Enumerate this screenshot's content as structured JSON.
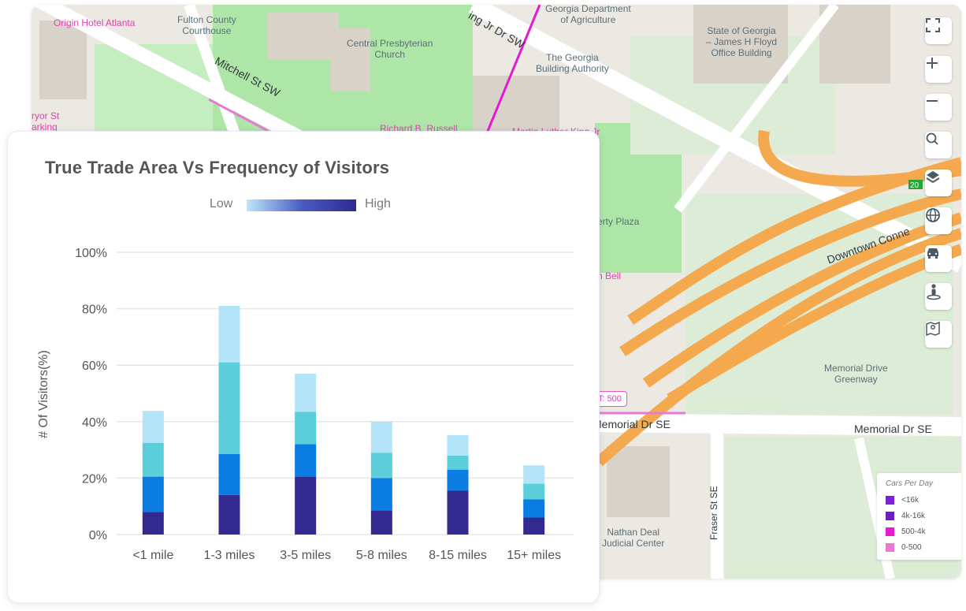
{
  "map": {
    "places": [
      {
        "name": "Origin Hotel Atlanta",
        "pink": true
      },
      {
        "name": "Fulton County\nCourthouse",
        "pink": false
      },
      {
        "name": "Georgia Department\nof Agriculture",
        "pink": false
      },
      {
        "name": "State of Georgia\n– James H Floyd\nOffice Building",
        "pink": false
      },
      {
        "name": "Central Presbyterian\nChurch",
        "pink": false
      },
      {
        "name": "The Georgia\nBuilding Authority",
        "pink": false
      },
      {
        "name": "Richard B. Russell",
        "pink": true
      },
      {
        "name": "Martin Luther King Jr",
        "pink": true
      },
      {
        "name": "ryor St\narking",
        "pink": true
      },
      {
        "name": "erty Plaza",
        "pink": false
      },
      {
        "name": "n Bell",
        "pink": true
      },
      {
        "name": "Memorial Drive\nGreenway",
        "pink": false
      },
      {
        "name": "Nathan Deal\nJudicial Center",
        "pink": false
      }
    ],
    "streets": [
      "Mitchell St SW",
      "ing Jr Dr SW",
      "Downtown Conne",
      "Memorial Dr SE",
      "Memorial Dr SE",
      "Fraser St SE"
    ],
    "aadt_label": "DT: 500",
    "road_badge": "20",
    "controls": [
      "fullscreen-icon",
      "plus-icon",
      "minus-icon",
      "search-icon",
      "layers-icon",
      "globe-icon",
      "car-icon",
      "street-view-icon",
      "map-icon"
    ],
    "legend": {
      "title": "Cars Per Day",
      "items": [
        {
          "label": "<16k",
          "color": "#7a22d6"
        },
        {
          "label": "4k-16k",
          "color": "#6b1fc7"
        },
        {
          "label": "500-4k",
          "color": "#e31bd1"
        },
        {
          "label": "0-500",
          "color": "#e87ad6"
        }
      ]
    }
  },
  "card": {
    "title": "True Trade Area Vs Frequency of Visitors",
    "low_label": "Low",
    "high_label": "High"
  },
  "chart_data": {
    "type": "bar",
    "stacked": true,
    "title": "True Trade Area Vs Frequency of Visitors",
    "xlabel": "",
    "ylabel": "# Of Visitors(%)",
    "ylim": [
      0,
      100
    ],
    "yticks": [
      "0%",
      "20%",
      "40%",
      "60%",
      "80%",
      "100%"
    ],
    "categories": [
      "<1 mile",
      "1-3 miles",
      "3-5 miles",
      "5-8 miles",
      "8-15 miles",
      "15+ miles"
    ],
    "series": [
      {
        "color": "#33298f",
        "values": [
          8,
          14,
          20.5,
          8.5,
          15.5,
          6
        ]
      },
      {
        "color": "#0a7ce2",
        "values": [
          12.5,
          14.5,
          11.5,
          11.5,
          7.5,
          6.5
        ]
      },
      {
        "color": "#5cced9",
        "values": [
          12,
          32.5,
          11.5,
          9,
          5,
          5.5
        ]
      },
      {
        "color": "#b4e4f7",
        "values": [
          11.3,
          20,
          13.5,
          11,
          7.2,
          6.5
        ]
      }
    ],
    "grid": true,
    "legend": "top-center gradient Low to High"
  }
}
